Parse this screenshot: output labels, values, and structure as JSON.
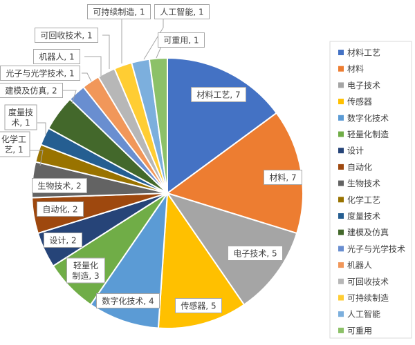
{
  "chart_data": {
    "type": "pie",
    "title": "",
    "legend_position": "right",
    "slices": [
      {
        "name": "材料工艺",
        "value": 7,
        "color": "#4472C4",
        "label_lines": [
          "材料工艺, 7"
        ]
      },
      {
        "name": "材料",
        "value": 7,
        "color": "#ED7D31",
        "label_lines": [
          "材料, 7"
        ]
      },
      {
        "name": "电子技术",
        "value": 5,
        "color": "#A5A5A5",
        "label_lines": [
          "电子技术, 5"
        ]
      },
      {
        "name": "传感器",
        "value": 5,
        "color": "#FFC000",
        "label_lines": [
          "传感器, 5"
        ]
      },
      {
        "name": "数字化技术",
        "value": 4,
        "color": "#5B9BD5",
        "label_lines": [
          "数字化技术, 4"
        ]
      },
      {
        "name": "轻量化制造",
        "value": 3,
        "color": "#70AD47",
        "label_lines": [
          "轻量化",
          "制造, 3"
        ]
      },
      {
        "name": "设计",
        "value": 2,
        "color": "#264478",
        "label_lines": [
          "设计, 2"
        ]
      },
      {
        "name": "自动化",
        "value": 2,
        "color": "#9E480E",
        "label_lines": [
          "自动化, 2"
        ]
      },
      {
        "name": "生物技术",
        "value": 2,
        "color": "#636363",
        "label_lines": [
          "生物技术, 2"
        ]
      },
      {
        "name": "化学工艺",
        "value": 1,
        "color": "#997300",
        "label_lines": [
          "化学工",
          "艺, 1"
        ]
      },
      {
        "name": "度量技术",
        "value": 1,
        "color": "#255E91",
        "label_lines": [
          "度量技",
          "术, 1"
        ]
      },
      {
        "name": "建模及仿真",
        "value": 2,
        "color": "#43682B",
        "label_lines": [
          "建模及仿真, 2"
        ]
      },
      {
        "name": "光子与光学技术",
        "value": 1,
        "color": "#698ED0",
        "label_lines": [
          "光子与光学技术, 1"
        ]
      },
      {
        "name": "机器人",
        "value": 1,
        "color": "#F1975A",
        "label_lines": [
          "机器人, 1"
        ]
      },
      {
        "name": "可回收技术",
        "value": 1,
        "color": "#B7B7B7",
        "label_lines": [
          "可回收技术, 1"
        ]
      },
      {
        "name": "可持续制造",
        "value": 1,
        "color": "#FFCD33",
        "label_lines": [
          "可持续制造, 1"
        ]
      },
      {
        "name": "人工智能",
        "value": 1,
        "color": "#7CAFDD",
        "label_lines": [
          "人工智能, 1"
        ]
      },
      {
        "name": "可重用",
        "value": 1,
        "color": "#8CC168",
        "label_lines": [
          "可重用, 1"
        ]
      }
    ]
  }
}
